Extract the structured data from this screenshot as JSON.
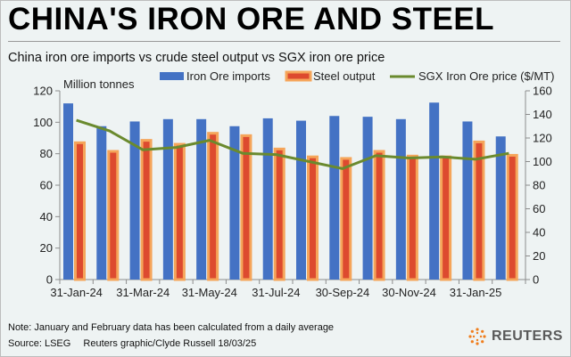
{
  "header": {
    "title": "CHINA'S IRON ORE AND STEEL",
    "subtitle": "China iron ore imports vs crude steel output vs SGX iron ore price"
  },
  "footer": {
    "note": "Note: January and February data has been calculated from a daily average",
    "source": "Source: LSEG",
    "credit": "Reuters graphic/Clyde Russell 18/03/25",
    "logo_text": "REUTERS"
  },
  "colors": {
    "imports_bar": "#4472c4",
    "steel_fill": "#dd4a2f",
    "steel_border": "#f5a55a",
    "price_line": "#6a8a2e",
    "axis": "#8c8c8c"
  },
  "chart_data": {
    "type": "bar",
    "unit_label": "Million tonnes",
    "x_tick_labels": [
      "31-Jan-24",
      "31-Mar-24",
      "31-May-24",
      "31-Jul-24",
      "30-Sep-24",
      "30-Nov-24",
      "31-Jan-25"
    ],
    "ylim": [
      0,
      120
    ],
    "y_ticks": [
      0,
      20,
      40,
      60,
      80,
      100,
      120
    ],
    "y2lim": [
      0,
      160
    ],
    "y2_ticks": [
      0,
      20,
      40,
      60,
      80,
      100,
      120,
      140,
      160
    ],
    "series": [
      {
        "name": "Iron Ore imports",
        "axis": "left",
        "kind": "bar",
        "values": [
          112,
          97.5,
          100.5,
          102,
          102,
          97.5,
          102.5,
          101,
          104,
          103.5,
          102,
          112.5,
          100.5,
          91
        ]
      },
      {
        "name": "Steel output",
        "axis": "left",
        "kind": "bar",
        "values": [
          87,
          81.5,
          88.5,
          86,
          93,
          91.5,
          83,
          78,
          77,
          81.5,
          78.5,
          78,
          87.5,
          79
        ]
      },
      {
        "name": "SGX Iron Ore price ($/MT)",
        "axis": "right",
        "kind": "line",
        "values": [
          135,
          126,
          110,
          112,
          118,
          107,
          106,
          100,
          94,
          105,
          103,
          104,
          102,
          107
        ]
      }
    ]
  }
}
